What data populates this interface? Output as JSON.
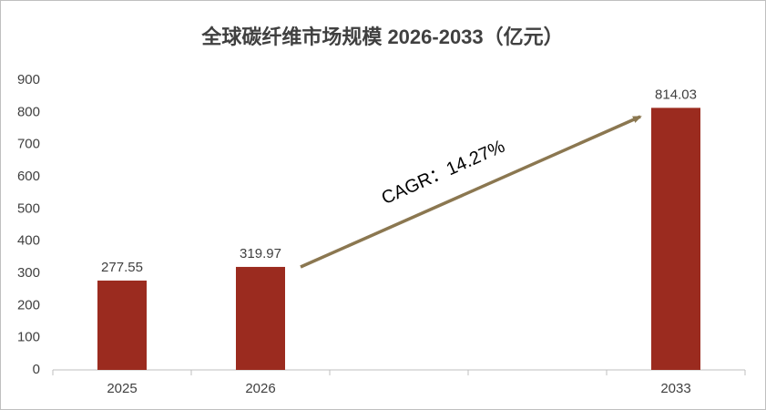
{
  "chart_data": {
    "type": "bar",
    "title": "全球碳纤维市场规模 2026-2033（亿元）",
    "categories": [
      "2025",
      "2026",
      null,
      null,
      "2033"
    ],
    "values": [
      277.55,
      319.97,
      null,
      null,
      814.03
    ],
    "color": "#9b2b1f",
    "ylim": [
      0,
      900
    ],
    "yticks": [
      0,
      100,
      200,
      300,
      400,
      500,
      600,
      700,
      800,
      900
    ],
    "grid": false,
    "annotation": "CAGR：14.27%"
  }
}
